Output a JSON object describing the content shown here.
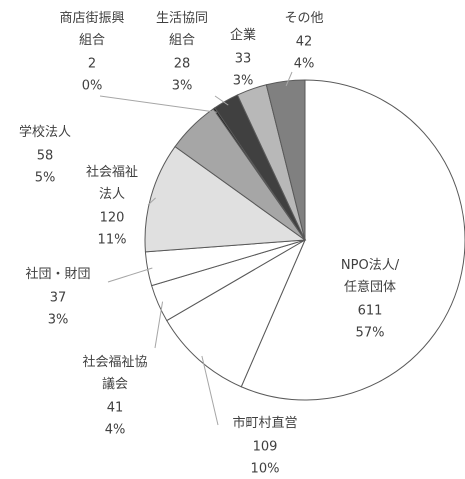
{
  "chart_data": {
    "type": "pie",
    "categories": [
      "NPO法人/任意団体",
      "市町村直営",
      "社会福祉協議会",
      "社団・財団",
      "社会福祉法人",
      "学校法人",
      "商店街振興組合",
      "生活協同組合",
      "企業",
      "その他"
    ],
    "values": [
      611,
      109,
      41,
      37,
      120,
      58,
      2,
      28,
      33,
      42
    ],
    "percent_labels": [
      "57%",
      "10%",
      "4%",
      "3%",
      "11%",
      "5%",
      "0%",
      "3%",
      "3%",
      "4%"
    ],
    "colors": [
      "#ffffff",
      "#ffffff",
      "#ffffff",
      "#ffffff",
      "#e0e0e0",
      "#a6a6a6",
      "#1a1a1a",
      "#404040",
      "#b8b8b8",
      "#808080"
    ]
  }
}
